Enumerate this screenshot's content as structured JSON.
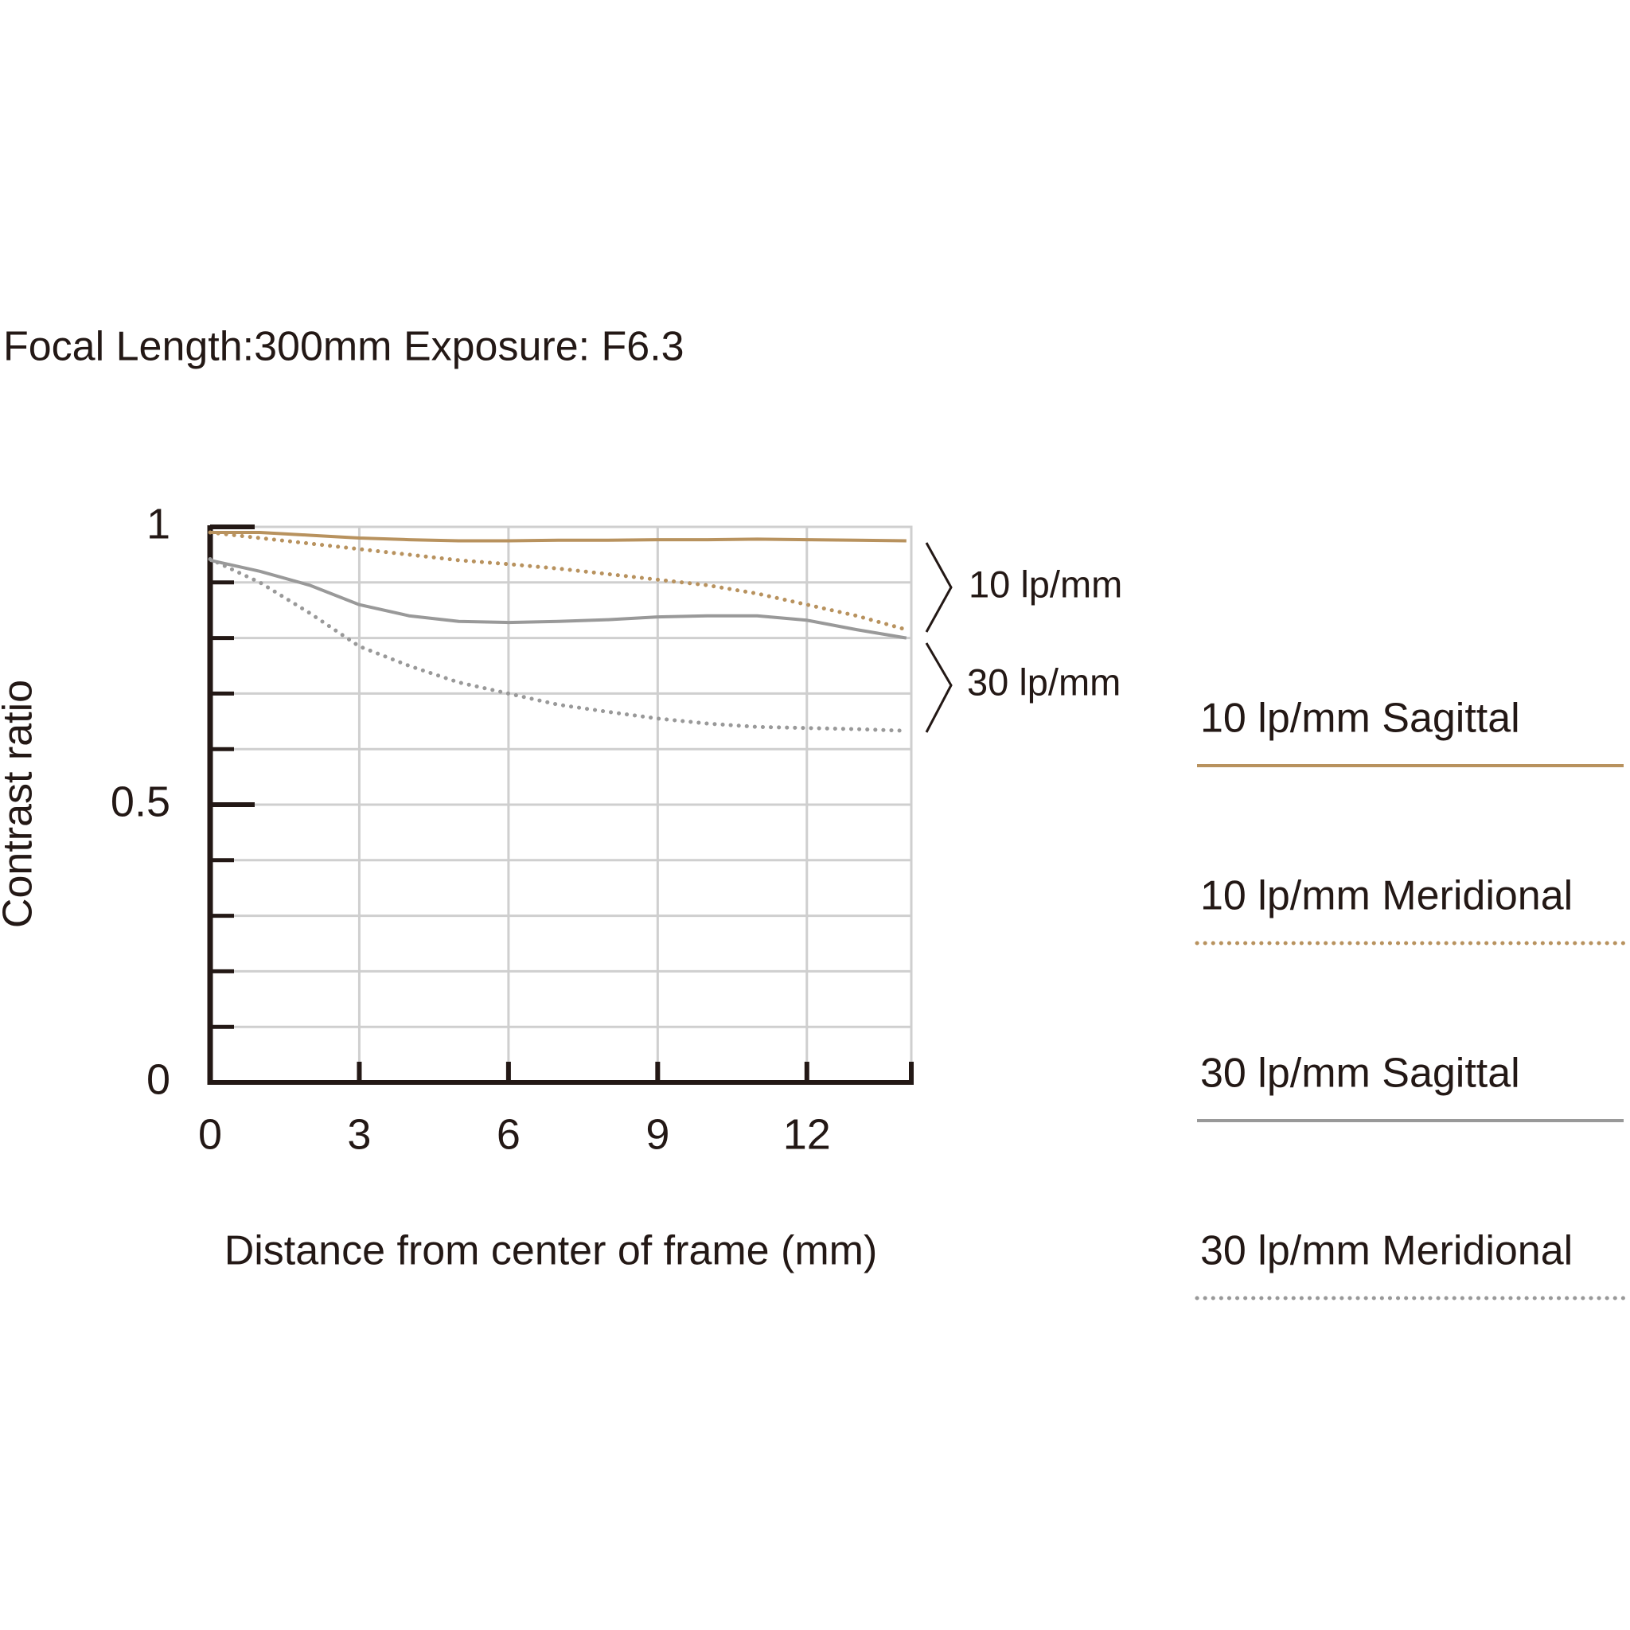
{
  "chart_data": {
    "type": "line",
    "title": "Focal Length:300mm  Exposure: F6.3",
    "x_label": "Distance from center of frame (mm)",
    "y_label": "Contrast ratio",
    "x": [
      0,
      1,
      2,
      3,
      4,
      5,
      6,
      7,
      8,
      9,
      10,
      11,
      12,
      13,
      14
    ],
    "xlim": [
      0,
      14.1
    ],
    "xticks": [
      0,
      3,
      6,
      9,
      12
    ],
    "ylim": [
      0,
      1
    ],
    "yticks": [
      0,
      0.5,
      1
    ],
    "yminorticks": [
      0.1,
      0.2,
      0.3,
      0.4,
      0.6,
      0.7,
      0.8,
      0.9
    ],
    "grid": true,
    "legend": "right",
    "series": [
      {
        "name": "10 lp/mm Sagittal",
        "color": "#b8925e",
        "style": "solid",
        "values": [
          0.99,
          0.99,
          0.985,
          0.98,
          0.977,
          0.975,
          0.975,
          0.976,
          0.976,
          0.977,
          0.977,
          0.978,
          0.977,
          0.976,
          0.975
        ]
      },
      {
        "name": "10 lp/mm Meridional",
        "color": "#b8925e",
        "style": "dotted",
        "values": [
          0.99,
          0.98,
          0.97,
          0.96,
          0.95,
          0.94,
          0.933,
          0.925,
          0.915,
          0.905,
          0.895,
          0.88,
          0.86,
          0.84,
          0.815
        ]
      },
      {
        "name": "30 lp/mm Sagittal",
        "color": "#999999",
        "style": "solid",
        "values": [
          0.94,
          0.92,
          0.895,
          0.86,
          0.84,
          0.83,
          0.828,
          0.83,
          0.833,
          0.838,
          0.84,
          0.84,
          0.832,
          0.815,
          0.8
        ]
      },
      {
        "name": "30 lp/mm Meridional",
        "color": "#999999",
        "style": "dotted",
        "values": [
          0.942,
          0.9,
          0.845,
          0.785,
          0.75,
          0.72,
          0.7,
          0.68,
          0.667,
          0.655,
          0.646,
          0.64,
          0.638,
          0.636,
          0.633
        ]
      }
    ],
    "annotations": [
      "10 lp/mm",
      "30 lp/mm"
    ]
  }
}
